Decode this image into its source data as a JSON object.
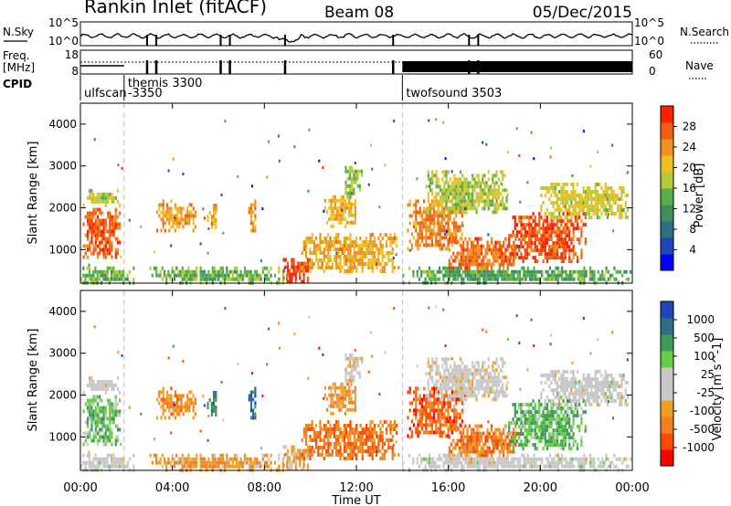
{
  "header": {
    "station": "Rankin Inlet (fitACF)",
    "beam": "Beam 08",
    "date": "05/Dec/2015"
  },
  "top_panels": {
    "nsky_label": "N.Sky",
    "nsearch_label": "N.Search",
    "nsky_tick_high": "10^5",
    "nsky_tick_low": "10^0",
    "nsearch_tick_high": "10^5",
    "nsearch_tick_low": "10^0",
    "freq_label": "Freq.",
    "freq_unit": "[MHz]",
    "freq_tick_high": "18",
    "freq_tick_low": "8",
    "nave_label": "Nave",
    "nave_tick_high": "60",
    "nave_tick_low": "0",
    "cpid_label": "CPID",
    "cpid_entries": [
      {
        "name": "ulfscan",
        "start_hour": 0.0
      },
      {
        "name": "themis 3300",
        "start_hour": 1.9
      },
      {
        "name": "-3350",
        "start_hour": 1.9
      },
      {
        "name": "twofsound 3503",
        "start_hour": 14.0
      }
    ]
  },
  "colors": {
    "power_scale": [
      "#0000ff",
      "#2244bb",
      "#2f6f86",
      "#3f8f5a",
      "#55b04a",
      "#b8c83a",
      "#f0c020",
      "#f09020",
      "#f06010",
      "#ff2000"
    ],
    "velocity_scale": [
      "#ff0000",
      "#ff4a00",
      "#f08020",
      "#f0a020",
      "#c8c8c8",
      "#c8c8c8",
      "#66cc44",
      "#3f9a5a",
      "#2f6f86",
      "#2244bb"
    ]
  },
  "chart_data": [
    {
      "type": "heatmap",
      "name": "power-panel",
      "xlabel": "",
      "ylabel": "Slant Range [km]",
      "xlim_hours": [
        0,
        24
      ],
      "ylim": [
        200,
        4500
      ],
      "y_ticks": [
        "1000",
        "2000",
        "3000",
        "4000"
      ],
      "colorbar_label": "Power [dB]",
      "colorbar_ticks": [
        "4",
        "8",
        "12",
        "16",
        "20",
        "24",
        "28"
      ],
      "dashed_lines_hours": [
        1.9,
        14.0
      ],
      "blobs": [
        {
          "t0": 0.1,
          "t1": 1.7,
          "r0": 800,
          "r1": 2000,
          "level": 0.88
        },
        {
          "t0": 0.1,
          "t1": 1.7,
          "r0": 2100,
          "r1": 2450,
          "level": 0.55
        },
        {
          "t0": 0.0,
          "t1": 2.3,
          "r0": 250,
          "r1": 600,
          "level": 0.45
        },
        {
          "t0": 3.3,
          "t1": 5.1,
          "r0": 1500,
          "r1": 2200,
          "level": 0.75
        },
        {
          "t0": 5.5,
          "t1": 5.9,
          "r0": 1500,
          "r1": 2100,
          "level": 0.75
        },
        {
          "t0": 7.3,
          "t1": 7.6,
          "r0": 1500,
          "r1": 2200,
          "level": 0.78
        },
        {
          "t0": 3.0,
          "t1": 9.0,
          "r0": 250,
          "r1": 600,
          "level": 0.45
        },
        {
          "t0": 8.8,
          "t1": 10.0,
          "r0": 250,
          "r1": 800,
          "level": 0.95
        },
        {
          "t0": 9.6,
          "t1": 13.8,
          "r0": 500,
          "r1": 1400,
          "level": 0.72
        },
        {
          "t0": 10.6,
          "t1": 12.0,
          "r0": 1600,
          "r1": 2300,
          "level": 0.7
        },
        {
          "t0": 11.5,
          "t1": 12.2,
          "r0": 2300,
          "r1": 3000,
          "level": 0.5
        },
        {
          "t0": 14.2,
          "t1": 16.6,
          "r0": 1000,
          "r1": 2200,
          "level": 0.82
        },
        {
          "t0": 16.0,
          "t1": 19.0,
          "r0": 500,
          "r1": 1300,
          "level": 0.85
        },
        {
          "t0": 18.6,
          "t1": 22.0,
          "r0": 700,
          "r1": 1900,
          "level": 0.92
        },
        {
          "t0": 20.0,
          "t1": 23.8,
          "r0": 1800,
          "r1": 2600,
          "level": 0.6
        },
        {
          "t0": 15.0,
          "t1": 18.5,
          "r0": 1900,
          "r1": 2900,
          "level": 0.55
        },
        {
          "t0": 14.0,
          "t1": 24.0,
          "r0": 250,
          "r1": 600,
          "level": 0.4
        }
      ]
    },
    {
      "type": "heatmap",
      "name": "velocity-panel",
      "xlabel": "Time UT",
      "ylabel": "Slant Range [km]",
      "xlim_hours": [
        0,
        24
      ],
      "ylim": [
        200,
        4500
      ],
      "x_ticks": [
        "00:00",
        "04:00",
        "08:00",
        "12:00",
        "16:00",
        "20:00",
        "00:00"
      ],
      "y_ticks": [
        "1000",
        "2000",
        "3000",
        "4000"
      ],
      "colorbar_label": "Velocity [m s^-1]",
      "colorbar_ticks": [
        "-1000",
        "-500",
        "-100",
        "-25",
        "25",
        "100",
        "500",
        "1000"
      ],
      "dashed_lines_hours": [
        1.9,
        14.0
      ],
      "blobs": [
        {
          "t0": 0.1,
          "t1": 1.7,
          "r0": 800,
          "r1": 2000,
          "level": 0.66
        },
        {
          "t0": 0.1,
          "t1": 1.7,
          "r0": 2100,
          "r1": 2450,
          "level": 0.48
        },
        {
          "t0": 0.0,
          "t1": 2.3,
          "r0": 250,
          "r1": 600,
          "level": 0.5
        },
        {
          "t0": 3.3,
          "t1": 5.1,
          "r0": 1500,
          "r1": 2200,
          "level": 0.25
        },
        {
          "t0": 5.5,
          "t1": 5.9,
          "r0": 1500,
          "r1": 2100,
          "level": 0.85
        },
        {
          "t0": 7.3,
          "t1": 7.6,
          "r0": 1500,
          "r1": 2200,
          "level": 0.9
        },
        {
          "t0": 3.0,
          "t1": 9.0,
          "r0": 250,
          "r1": 600,
          "level": 0.3
        },
        {
          "t0": 8.8,
          "t1": 10.0,
          "r0": 250,
          "r1": 800,
          "level": 0.35
        },
        {
          "t0": 9.6,
          "t1": 13.8,
          "r0": 500,
          "r1": 1400,
          "level": 0.2
        },
        {
          "t0": 10.6,
          "t1": 12.0,
          "r0": 1600,
          "r1": 2300,
          "level": 0.3
        },
        {
          "t0": 11.5,
          "t1": 12.2,
          "r0": 2300,
          "r1": 3000,
          "level": 0.45
        },
        {
          "t0": 14.2,
          "t1": 16.6,
          "r0": 1000,
          "r1": 2200,
          "level": 0.15
        },
        {
          "t0": 16.0,
          "t1": 19.0,
          "r0": 500,
          "r1": 1300,
          "level": 0.2
        },
        {
          "t0": 18.6,
          "t1": 22.0,
          "r0": 700,
          "r1": 1900,
          "level": 0.7
        },
        {
          "t0": 20.0,
          "t1": 23.8,
          "r0": 1800,
          "r1": 2600,
          "level": 0.5
        },
        {
          "t0": 15.0,
          "t1": 18.5,
          "r0": 1900,
          "r1": 2900,
          "level": 0.48
        },
        {
          "t0": 14.0,
          "t1": 24.0,
          "r0": 250,
          "r1": 600,
          "level": 0.5
        }
      ]
    }
  ]
}
